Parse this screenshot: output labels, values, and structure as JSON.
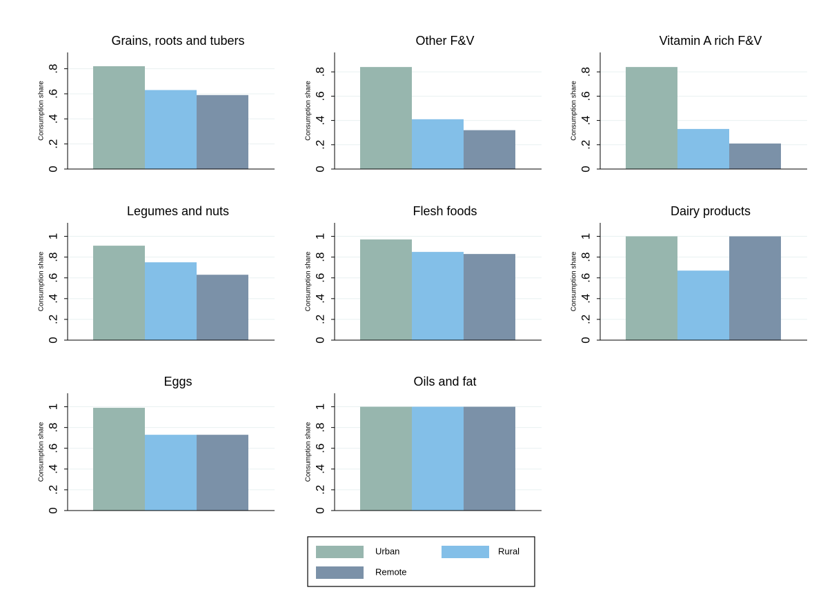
{
  "chart_data": [
    {
      "type": "bar",
      "title": "Grains, roots and tubers",
      "ylabel": "Consumption share",
      "ylim": [
        0,
        0.93
      ],
      "yticks": [
        0,
        {
          "value": 0.2,
          "label": ".2"
        },
        {
          "value": 0.4,
          "label": ".4"
        },
        {
          "value": 0.6,
          "label": ".6"
        },
        {
          "value": 0.8,
          "label": ".8"
        }
      ],
      "grid": true,
      "series": [
        {
          "name": "Urban",
          "color": "#97b6ae",
          "values": [
            0.82
          ]
        },
        {
          "name": "Rural",
          "color": "#83bfe8",
          "values": [
            0.63
          ]
        },
        {
          "name": "Remote",
          "color": "#7b91a8",
          "values": [
            0.59
          ]
        }
      ]
    },
    {
      "type": "bar",
      "title": "Other F&V",
      "ylabel": "Consumption share",
      "ylim": [
        0,
        0.96
      ],
      "yticks": [
        0,
        {
          "value": 0.2,
          "label": ".2"
        },
        {
          "value": 0.4,
          "label": ".4"
        },
        {
          "value": 0.6,
          "label": ".6"
        },
        {
          "value": 0.8,
          "label": ".8"
        }
      ],
      "grid": true,
      "series": [
        {
          "name": "Urban",
          "color": "#97b6ae",
          "values": [
            0.84
          ]
        },
        {
          "name": "Rural",
          "color": "#83bfe8",
          "values": [
            0.41
          ]
        },
        {
          "name": "Remote",
          "color": "#7b91a8",
          "values": [
            0.32
          ]
        }
      ]
    },
    {
      "type": "bar",
      "title": "Vitamin A rich F&V",
      "ylabel": "Consumption share",
      "ylim": [
        0,
        0.96
      ],
      "yticks": [
        0,
        {
          "value": 0.2,
          "label": ".2"
        },
        {
          "value": 0.4,
          "label": ".4"
        },
        {
          "value": 0.6,
          "label": ".6"
        },
        {
          "value": 0.8,
          "label": ".8"
        }
      ],
      "grid": true,
      "series": [
        {
          "name": "Urban",
          "color": "#97b6ae",
          "values": [
            0.84
          ]
        },
        {
          "name": "Rural",
          "color": "#83bfe8",
          "values": [
            0.33
          ]
        },
        {
          "name": "Remote",
          "color": "#7b91a8",
          "values": [
            0.21
          ]
        }
      ]
    },
    {
      "type": "bar",
      "title": "Legumes and nuts",
      "ylabel": "Consumption share",
      "ylim": [
        0,
        1.13
      ],
      "yticks": [
        0,
        {
          "value": 0.2,
          "label": ".2"
        },
        {
          "value": 0.4,
          "label": ".4"
        },
        {
          "value": 0.6,
          "label": ".6"
        },
        {
          "value": 0.8,
          "label": ".8"
        },
        1
      ],
      "grid": true,
      "series": [
        {
          "name": "Urban",
          "color": "#97b6ae",
          "values": [
            0.91
          ]
        },
        {
          "name": "Rural",
          "color": "#83bfe8",
          "values": [
            0.75
          ]
        },
        {
          "name": "Remote",
          "color": "#7b91a8",
          "values": [
            0.63
          ]
        }
      ]
    },
    {
      "type": "bar",
      "title": "Flesh foods",
      "ylabel": "Consumption share",
      "ylim": [
        0,
        1.13
      ],
      "yticks": [
        0,
        {
          "value": 0.2,
          "label": ".2"
        },
        {
          "value": 0.4,
          "label": ".4"
        },
        {
          "value": 0.6,
          "label": ".6"
        },
        {
          "value": 0.8,
          "label": ".8"
        },
        1
      ],
      "grid": true,
      "series": [
        {
          "name": "Urban",
          "color": "#97b6ae",
          "values": [
            0.97
          ]
        },
        {
          "name": "Rural",
          "color": "#83bfe8",
          "values": [
            0.85
          ]
        },
        {
          "name": "Remote",
          "color": "#7b91a8",
          "values": [
            0.83
          ]
        }
      ]
    },
    {
      "type": "bar",
      "title": "Dairy products",
      "ylabel": "Consumption share",
      "ylim": [
        0,
        1.13
      ],
      "yticks": [
        0,
        {
          "value": 0.2,
          "label": ".2"
        },
        {
          "value": 0.4,
          "label": ".4"
        },
        {
          "value": 0.6,
          "label": ".6"
        },
        {
          "value": 0.8,
          "label": ".8"
        },
        1
      ],
      "grid": true,
      "series": [
        {
          "name": "Urban",
          "color": "#97b6ae",
          "values": [
            1
          ]
        },
        {
          "name": "Rural",
          "color": "#83bfe8",
          "values": [
            0.67
          ]
        },
        {
          "name": "Remote",
          "color": "#7b91a8",
          "values": [
            1
          ]
        }
      ]
    },
    {
      "type": "bar",
      "title": "Eggs",
      "ylabel": "Consumption share",
      "ylim": [
        0,
        1.13
      ],
      "yticks": [
        0,
        {
          "value": 0.2,
          "label": ".2"
        },
        {
          "value": 0.4,
          "label": ".4"
        },
        {
          "value": 0.6,
          "label": ".6"
        },
        {
          "value": 0.8,
          "label": ".8"
        },
        1
      ],
      "grid": true,
      "series": [
        {
          "name": "Urban",
          "color": "#97b6ae",
          "values": [
            0.99
          ]
        },
        {
          "name": "Rural",
          "color": "#83bfe8",
          "values": [
            0.73
          ]
        },
        {
          "name": "Remote",
          "color": "#7b91a8",
          "values": [
            0.73
          ]
        }
      ]
    },
    {
      "type": "bar",
      "title": "Oils and fat",
      "ylabel": "Consumption share",
      "ylim": [
        0,
        1.13
      ],
      "yticks": [
        0,
        {
          "value": 0.2,
          "label": ".2"
        },
        {
          "value": 0.4,
          "label": ".4"
        },
        {
          "value": 0.6,
          "label": ".6"
        },
        {
          "value": 0.8,
          "label": ".8"
        },
        1
      ],
      "grid": true,
      "series": [
        {
          "name": "Urban",
          "color": "#97b6ae",
          "values": [
            1
          ]
        },
        {
          "name": "Rural",
          "color": "#83bfe8",
          "values": [
            1
          ]
        },
        {
          "name": "Remote",
          "color": "#7b91a8",
          "values": [
            1
          ]
        }
      ]
    }
  ]
}
